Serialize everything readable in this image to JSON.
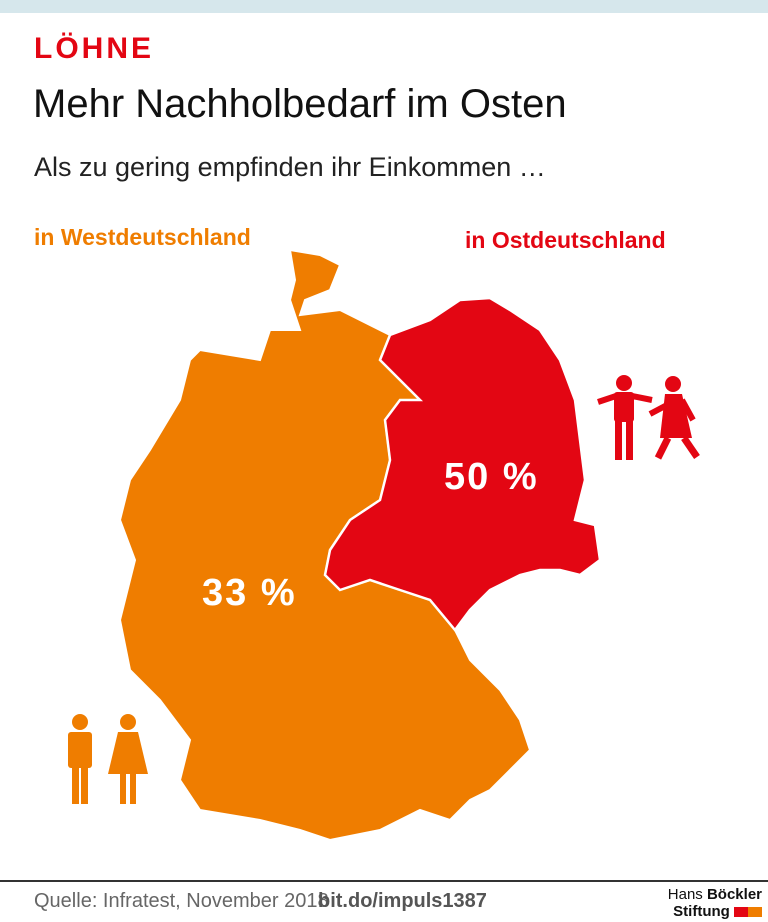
{
  "kicker": "LÖHNE",
  "title": "Mehr Nachholbedarf im Osten",
  "subtitle": "Als zu gering empfinden ihr Einkommen …",
  "regions": [
    {
      "label": "in Westdeutschland",
      "value": "33 %",
      "color": "#ef7d00"
    },
    {
      "label": "in Ostdeutschland",
      "value": "50 %",
      "color": "#e30613"
    }
  ],
  "icons": {
    "west": "man-woman-standing-icon",
    "east": "man-woman-walking-icon"
  },
  "footer": {
    "source": "Quelle: Infratest, November 2018",
    "link": "bit.do/impuls1387"
  },
  "logo": {
    "line1_light": "Hans",
    "line1_bold": "Böckler",
    "line2": "Stiftung"
  }
}
